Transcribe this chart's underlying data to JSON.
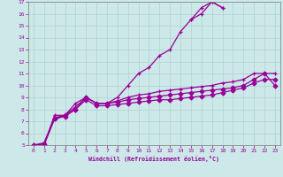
{
  "xlabel": "Windchill (Refroidissement éolien,°C)",
  "bg_color": "#cce8e8",
  "line_color": "#990099",
  "grid_color": "#aacccc",
  "spine_color": "#888888",
  "xlim": [
    -0.5,
    23.5
  ],
  "ylim": [
    5,
    17
  ],
  "xticks": [
    0,
    1,
    2,
    3,
    4,
    5,
    6,
    7,
    8,
    9,
    10,
    11,
    12,
    13,
    14,
    15,
    16,
    17,
    18,
    19,
    20,
    21,
    22,
    23
  ],
  "yticks": [
    5,
    6,
    7,
    8,
    9,
    10,
    11,
    12,
    13,
    14,
    15,
    16,
    17
  ],
  "series": [
    {
      "x": [
        0,
        1,
        2,
        3,
        4,
        5,
        6,
        7,
        8,
        9,
        10,
        11,
        12,
        13,
        14,
        15,
        16,
        17,
        18
      ],
      "y": [
        5,
        5,
        7.5,
        7.5,
        8.5,
        9,
        8.5,
        8.5,
        9,
        10,
        11,
        11.5,
        12.5,
        13,
        14.5,
        15.5,
        16,
        17,
        16.5
      ],
      "marker": "+",
      "ms": 3.5,
      "lw": 0.9
    },
    {
      "x": [
        15,
        16,
        17,
        18
      ],
      "y": [
        15.5,
        16.5,
        17,
        16.5
      ],
      "marker": "+",
      "ms": 3.5,
      "lw": 0.9
    },
    {
      "x": [
        0,
        1,
        2,
        3,
        4,
        5,
        6,
        7,
        8,
        9,
        10,
        11,
        12,
        13,
        14,
        15,
        16,
        17,
        18,
        19,
        20,
        21,
        22,
        23
      ],
      "y": [
        5,
        5.2,
        7.3,
        7.5,
        8.2,
        9,
        8.5,
        8.5,
        8.7,
        9.0,
        9.2,
        9.3,
        9.5,
        9.6,
        9.7,
        9.8,
        9.9,
        10.0,
        10.2,
        10.3,
        10.5,
        11,
        11,
        11
      ],
      "marker": "+",
      "ms": 3.5,
      "lw": 0.9
    },
    {
      "x": [
        0,
        1,
        2,
        3,
        4,
        5,
        6,
        7,
        8,
        9,
        10,
        11,
        12,
        13,
        14,
        15,
        16,
        17,
        18,
        19,
        20,
        21,
        22,
        23
      ],
      "y": [
        5,
        5.1,
        7.2,
        7.5,
        8.0,
        9.0,
        8.5,
        8.5,
        8.6,
        8.8,
        8.9,
        9.0,
        9.1,
        9.2,
        9.3,
        9.4,
        9.5,
        9.6,
        9.7,
        9.8,
        10.0,
        10.5,
        11,
        10
      ],
      "marker": "D",
      "ms": 2.5,
      "lw": 0.9
    },
    {
      "x": [
        0,
        1,
        2,
        3,
        4,
        5,
        6,
        7,
        8,
        9,
        10,
        11,
        12,
        13,
        14,
        15,
        16,
        17,
        18,
        19,
        20,
        21,
        22,
        23
      ],
      "y": [
        5,
        5,
        7.2,
        7.4,
        8.0,
        8.8,
        8.3,
        8.3,
        8.4,
        8.5,
        8.6,
        8.7,
        8.8,
        8.8,
        8.9,
        9.0,
        9.1,
        9.2,
        9.4,
        9.6,
        9.8,
        10.2,
        10.5,
        10.5
      ],
      "marker": "D",
      "ms": 2.5,
      "lw": 0.9
    }
  ]
}
